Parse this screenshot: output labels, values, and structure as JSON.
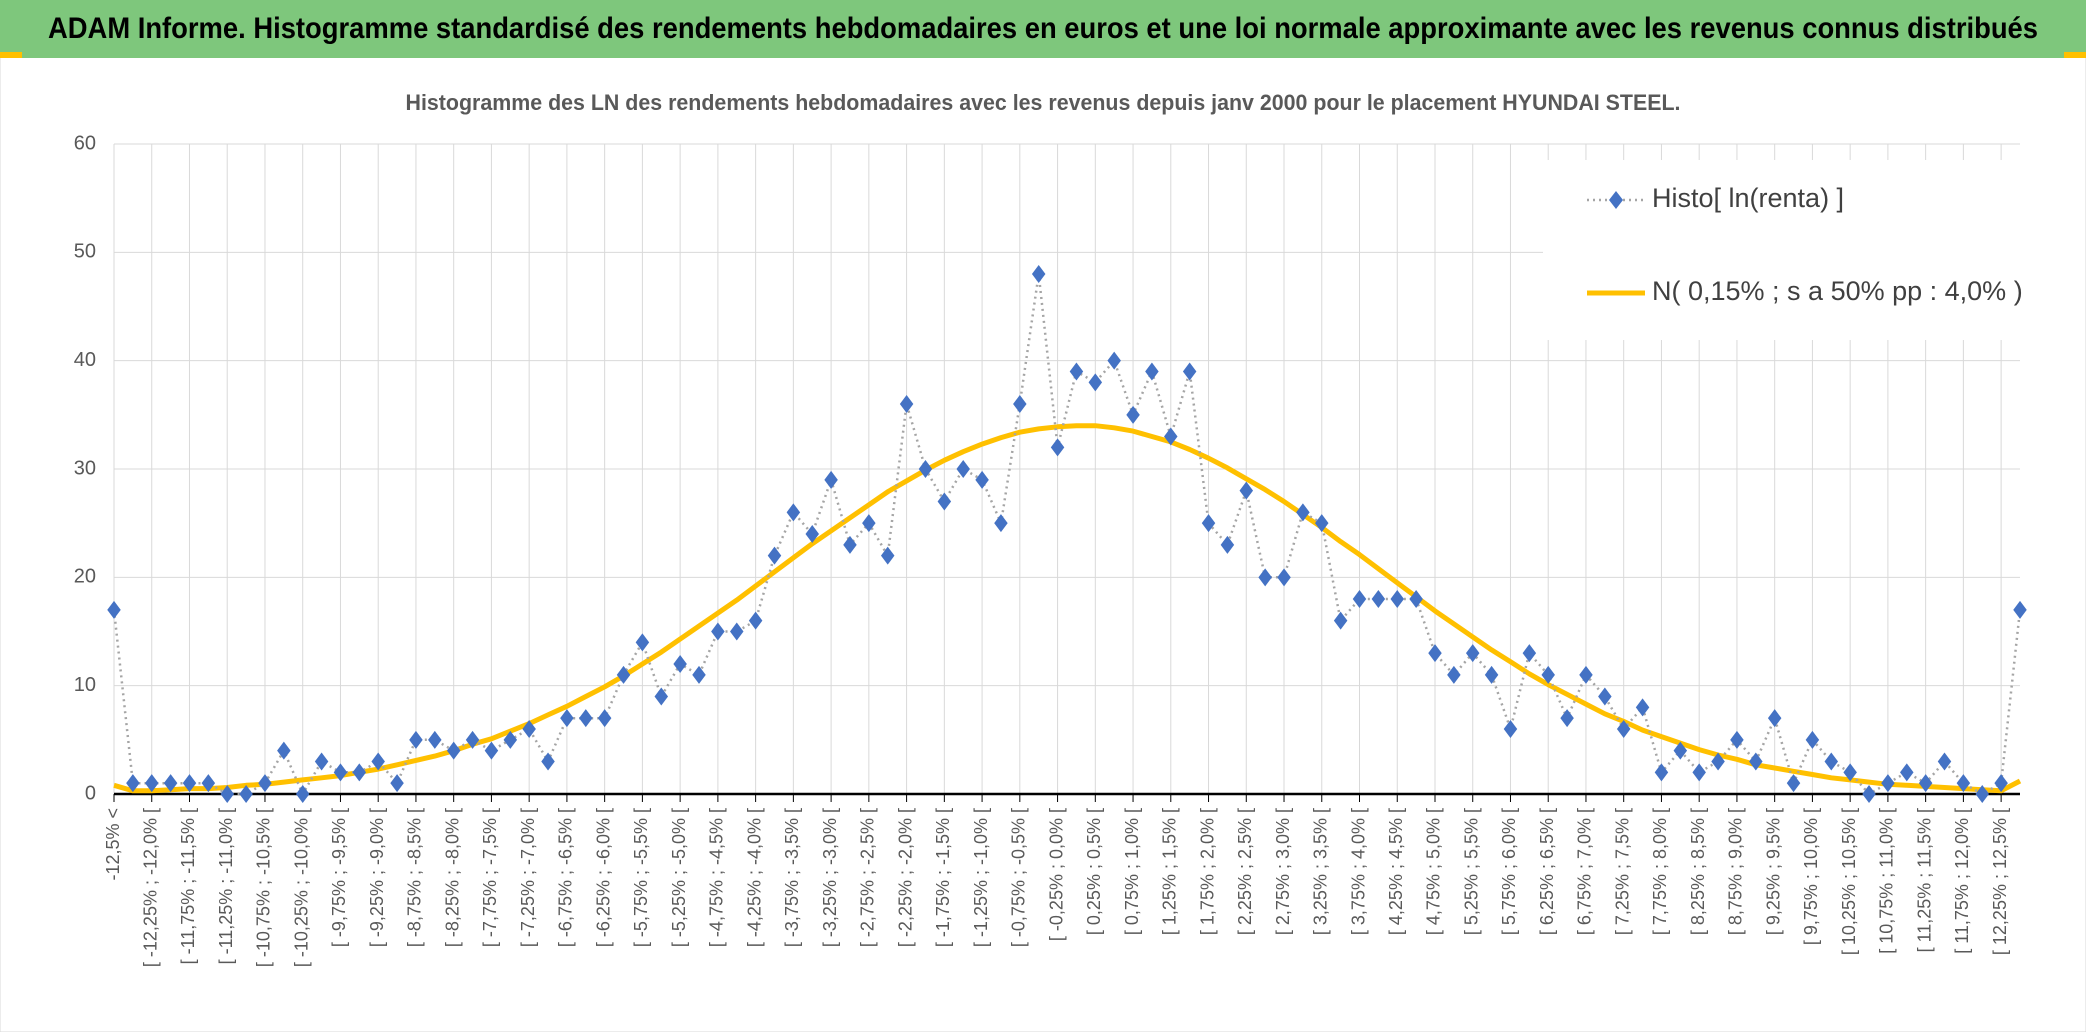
{
  "chart_data": {
    "type": "line",
    "header": "ADAM Informe. Histogramme standardisé des rendements hebdomadaires en euros et une loi normale approximante avec les revenus connus distribués",
    "title": "Histogramme des LN des rendements hebdomadaires avec les revenus depuis janv 2000 pour le placement HYUNDAI STEEL.",
    "categories": [
      "-12,5% <",
      null,
      "[ -12,25% ; -12,0% [",
      null,
      "[ -11,75% ; -11,5% [",
      null,
      "[ -11,25% ; -11,0% [",
      null,
      "[ -10,75% ; -10,5% [",
      null,
      "[ -10,25% ; -10,0% [",
      null,
      "[ -9,75% ; -9,5% [",
      null,
      "[ -9,25% ; -9,0% [",
      null,
      "[ -8,75% ; -8,5% [",
      null,
      "[ -8,25% ; -8,0% [",
      null,
      "[ -7,75% ; -7,5% [",
      null,
      "[ -7,25% ; -7,0% [",
      null,
      "[ -6,75% ; -6,5% [",
      null,
      "[ -6,25% ; -6,0% [",
      null,
      "[ -5,75% ; -5,5% [",
      null,
      "[ -5,25% ; -5,0% [",
      null,
      "[ -4,75% ; -4,5% [",
      null,
      "[ -4,25% ; -4,0% [",
      null,
      "[ -3,75% ; -3,5% [",
      null,
      "[ -3,25% ; -3,0% [",
      null,
      "[ -2,75% ; -2,5% [",
      null,
      "[ -2,25% ; -2,0% [",
      null,
      "[ -1,75% ; -1,5% [",
      null,
      "[ -1,25% ; -1,0% [",
      null,
      "[ -0,75% ; -0,5% [",
      null,
      "[ -0,25% ; 0,0% [",
      null,
      "[ 0,25% ; 0,5% [",
      null,
      "[ 0,75% ; 1,0% [",
      null,
      "[ 1,25% ; 1,5% [",
      null,
      "[ 1,75% ; 2,0% [",
      null,
      "[ 2,25% ; 2,5% [",
      null,
      "[ 2,75% ; 3,0% [",
      null,
      "[ 3,25% ; 3,5% [",
      null,
      "[ 3,75% ; 4,0% [",
      null,
      "[ 4,25% ; 4,5% [",
      null,
      "[ 4,75% ; 5,0% [",
      null,
      "[ 5,25% ; 5,5% [",
      null,
      "[ 5,75% ; 6,0% [",
      null,
      "[ 6,25% ; 6,5% [",
      null,
      "[ 6,75% ; 7,0% [",
      null,
      "[ 7,25% ; 7,5% [",
      null,
      "[ 7,75% ; 8,0% [",
      null,
      "[ 8,25% ; 8,5% [",
      null,
      "[ 8,75% ; 9,0% [",
      null,
      "[ 9,25% ; 9,5% [",
      null,
      "[ 9,75% ; 10,0% [",
      null,
      "[ 10,25% ; 10,5% [",
      null,
      "[ 10,75% ; 11,0% [",
      null,
      "[ 11,25% ; 11,5% [",
      null,
      "[ 11,75% ; 12,0% [",
      null,
      "[ 12,25% ; 12,5% [",
      null
    ],
    "series": [
      {
        "name": "Histo[ ln(renta) ]",
        "color": "#4472c4",
        "line_color": "#a5a5a5",
        "marker": "diamond",
        "values": [
          17,
          1,
          1,
          1,
          1,
          1,
          0,
          0,
          1,
          4,
          0,
          3,
          2,
          2,
          3,
          1,
          5,
          5,
          4,
          5,
          4,
          5,
          6,
          3,
          7,
          7,
          7,
          11,
          14,
          9,
          12,
          11,
          15,
          15,
          16,
          22,
          26,
          24,
          29,
          23,
          25,
          22,
          36,
          30,
          27,
          30,
          29,
          25,
          36,
          48,
          32,
          39,
          38,
          40,
          35,
          39,
          33,
          39,
          25,
          23,
          28,
          20,
          20,
          26,
          25,
          16,
          18,
          18,
          18,
          18,
          13,
          11,
          13,
          11,
          6,
          13,
          11,
          7,
          11,
          9,
          6,
          8,
          2,
          4,
          2,
          3,
          5,
          3,
          7,
          1,
          5,
          3,
          2,
          0,
          1,
          2,
          1,
          3,
          1,
          0,
          1,
          17
        ]
      },
      {
        "name": "N( 0,15% ; s a 50% pp : 4,0% )",
        "color": "#ffc000",
        "values": [
          0.8,
          0.3,
          0.3,
          0.4,
          0.5,
          0.5,
          0.6,
          0.8,
          0.9,
          1.1,
          1.3,
          1.5,
          1.7,
          2.0,
          2.3,
          2.7,
          3.1,
          3.5,
          4.0,
          4.6,
          5.1,
          5.8,
          6.5,
          7.3,
          8.1,
          9.0,
          9.9,
          10.9,
          12.0,
          13.1,
          14.3,
          15.5,
          16.7,
          17.9,
          19.2,
          20.5,
          21.8,
          23.1,
          24.3,
          25.5,
          26.7,
          27.9,
          28.9,
          29.9,
          30.8,
          31.6,
          32.3,
          32.9,
          33.4,
          33.7,
          33.9,
          34.0,
          34.0,
          33.8,
          33.5,
          33.0,
          32.5,
          31.8,
          31.0,
          30.1,
          29.1,
          28.1,
          27.0,
          25.8,
          24.6,
          23.3,
          22.1,
          20.8,
          19.5,
          18.2,
          16.9,
          15.7,
          14.5,
          13.3,
          12.2,
          11.1,
          10.1,
          9.2,
          8.3,
          7.4,
          6.7,
          5.9,
          5.3,
          4.7,
          4.1,
          3.6,
          3.2,
          2.7,
          2.4,
          2.1,
          1.8,
          1.5,
          1.3,
          1.1,
          0.9,
          0.8,
          0.7,
          0.6,
          0.5,
          0.4,
          0.3,
          1.2
        ]
      }
    ],
    "ylim": [
      0,
      60
    ],
    "yticks": [
      0,
      10,
      20,
      30,
      40,
      50,
      60
    ],
    "grid": true,
    "legend": "top-right"
  }
}
